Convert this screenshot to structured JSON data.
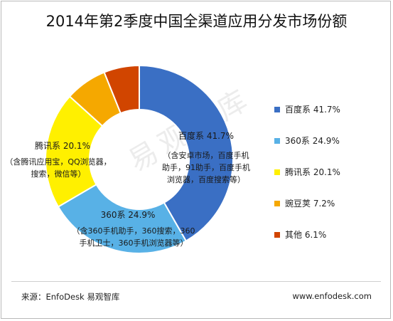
{
  "title": "2014年第2季度中国全渠道应用分发市场份额",
  "watermark": "易观智库",
  "footer": {
    "source": "来源：EnfoDesk 易观智库",
    "url": "www.enfodesk.com"
  },
  "chart_data": {
    "type": "pie",
    "title": "2014年第2季度中国全渠道应用分发市场份额",
    "legend_position": "right",
    "unit": "%",
    "slices": [
      {
        "name": "百度系",
        "value": 41.7,
        "color": "#3a6fc4",
        "detail": [
          "（含安卓市场，百度手机",
          "助手，91助手，百度手机",
          "浏览器，百度搜索等）"
        ]
      },
      {
        "name": "360系",
        "value": 24.9,
        "color": "#58b1e6",
        "detail": [
          "（含360手机助手，360搜索，360",
          "手机卫士，360手机浏览器等）"
        ]
      },
      {
        "name": "腾讯系",
        "value": 20.1,
        "color": "#fff000",
        "detail": [
          "（含腾讯应用宝，QQ浏览器，",
          "搜索，微信等）"
        ]
      },
      {
        "name": "豌豆荚",
        "value": 7.2,
        "color": "#f5a800",
        "detail": []
      },
      {
        "name": "其他",
        "value": 6.1,
        "color": "#d14500",
        "detail": []
      }
    ]
  }
}
